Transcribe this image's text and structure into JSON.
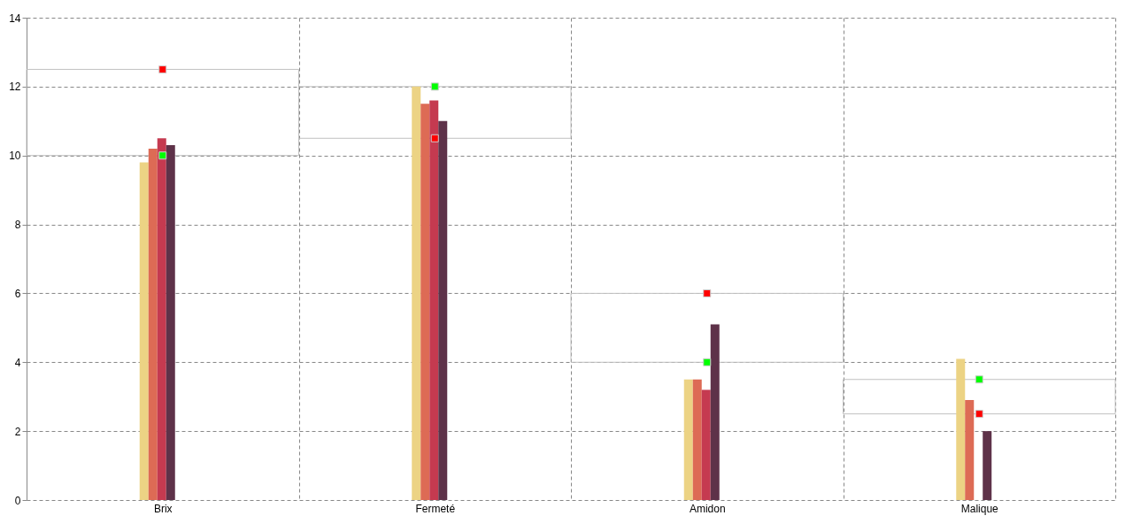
{
  "chart_data": {
    "type": "bar",
    "categories": [
      "Brix",
      "Fermeté",
      "Amidon",
      "Malique"
    ],
    "ylim": [
      0,
      14
    ],
    "yticks": [
      0,
      2,
      4,
      6,
      8,
      10,
      12,
      14
    ],
    "grid": true,
    "legend": false,
    "marker": "square",
    "series": [
      {
        "type": "bar",
        "base": [
          10,
          10.5,
          4,
          2.5
        ],
        "values": [
          2.5,
          1.5,
          2,
          1
        ],
        "color": "#c0c0c0"
      },
      {
        "color": "#ecd384",
        "values": [
          9.8,
          12.0,
          3.5,
          4.1
        ]
      },
      {
        "color": "#dd6b55",
        "values": [
          10.2,
          11.5,
          3.5,
          2.9
        ]
      },
      {
        "color": "#c53a50",
        "values": [
          10.5,
          11.6,
          3.2,
          null
        ]
      },
      {
        "color": "#5e3249",
        "values": [
          10.3,
          11.0,
          5.1,
          2.0
        ]
      },
      {
        "type": "scatter",
        "color": "#00ff00",
        "values": [
          10,
          12,
          4,
          3.5
        ]
      },
      {
        "type": "scatter",
        "color": "#ff0000",
        "values": [
          12.5,
          10.5,
          6,
          2.5
        ]
      }
    ]
  }
}
